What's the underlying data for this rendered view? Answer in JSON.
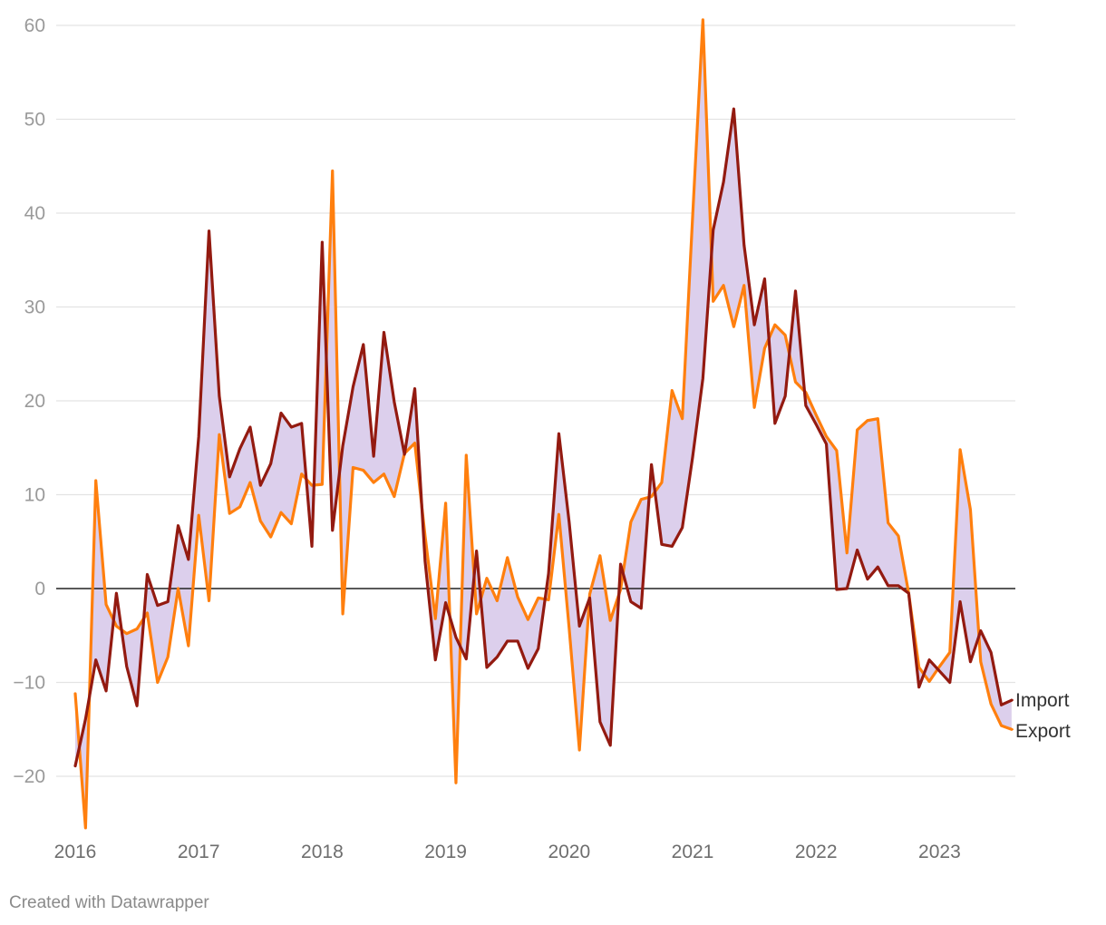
{
  "chart_data": {
    "type": "line",
    "x_start": "2016-01",
    "x_end": "2023-07",
    "x_ticks": [
      "2016",
      "2017",
      "2018",
      "2019",
      "2020",
      "2021",
      "2022",
      "2023"
    ],
    "ylim": [
      -25,
      60
    ],
    "yticks": [
      60,
      50,
      40,
      30,
      20,
      10,
      0,
      -10,
      -20
    ],
    "ytick_labels": [
      "60",
      "50",
      "40",
      "30",
      "20",
      "10",
      "0",
      "−10",
      "−20"
    ],
    "grid": true,
    "fill_between_series": true,
    "series": [
      {
        "name": "Export",
        "values": [
          -11.2,
          -25.5,
          11.5,
          -1.7,
          -4.0,
          -4.8,
          -4.3,
          -2.6,
          -10.0,
          -7.3,
          0.0,
          -6.1,
          7.8,
          -1.3,
          16.4,
          8.0,
          8.7,
          11.3,
          7.2,
          5.5,
          8.1,
          6.9,
          12.2,
          11.0,
          11.1,
          44.5,
          -2.7,
          12.9,
          12.6,
          11.3,
          12.2,
          9.8,
          14.4,
          15.5,
          5.6,
          -3.2,
          9.1,
          -20.7,
          14.2,
          -2.7,
          1.1,
          -1.3,
          3.3,
          -0.9,
          -3.3,
          -1.0,
          -1.2,
          7.9,
          -4.2,
          -17.2,
          -0.6,
          3.5,
          -3.4,
          -0.1,
          7.1,
          9.5,
          9.8,
          11.3,
          21.1,
          18.1,
          39.6,
          60.6,
          30.6,
          32.3,
          27.9,
          32.3,
          19.3,
          25.6,
          28.1,
          27.0,
          22.0,
          20.9,
          18.5,
          16.2,
          14.7,
          3.8,
          16.9,
          17.9,
          18.1,
          7.0,
          5.6,
          -0.5,
          -8.4,
          -9.9,
          -8.3,
          -6.8,
          14.8,
          8.4,
          -7.8,
          -12.3,
          -14.6,
          -15.0
        ],
        "color": "#ff7f0e"
      },
      {
        "name": "Import",
        "values": [
          -18.9,
          -13.9,
          -7.6,
          -10.9,
          -0.5,
          -8.3,
          -12.5,
          1.5,
          -1.8,
          -1.4,
          6.7,
          3.1,
          16.2,
          38.1,
          20.5,
          11.9,
          14.9,
          17.2,
          11.0,
          13.3,
          18.7,
          17.2,
          17.6,
          4.5,
          36.9,
          6.2,
          15.2,
          21.5,
          26.0,
          14.1,
          27.3,
          19.9,
          14.3,
          21.3,
          2.9,
          -7.6,
          -1.5,
          -5.2,
          -7.5,
          4.0,
          -8.4,
          -7.3,
          -5.6,
          -5.6,
          -8.5,
          -6.4,
          1.6,
          16.5,
          7.1,
          -4.0,
          -1.0,
          -14.2,
          -16.7,
          2.6,
          -1.4,
          -2.1,
          13.2,
          4.7,
          4.5,
          6.5,
          14.0,
          22.4,
          38.2,
          43.3,
          51.1,
          36.6,
          28.1,
          33.0,
          17.6,
          20.5,
          31.7,
          19.5,
          17.5,
          15.4,
          -0.1,
          0.0,
          4.1,
          1.0,
          2.3,
          0.3,
          0.3,
          -0.5,
          -10.5,
          -7.6,
          -8.8,
          -10.0,
          -1.4,
          -7.8,
          -4.5,
          -6.8,
          -12.4,
          -11.9
        ],
        "color": "#931a10"
      }
    ],
    "fill_color": "#dccfec",
    "legend": "direct labels at right end of lines"
  },
  "footer": {
    "credit": "Created with Datawrapper"
  }
}
